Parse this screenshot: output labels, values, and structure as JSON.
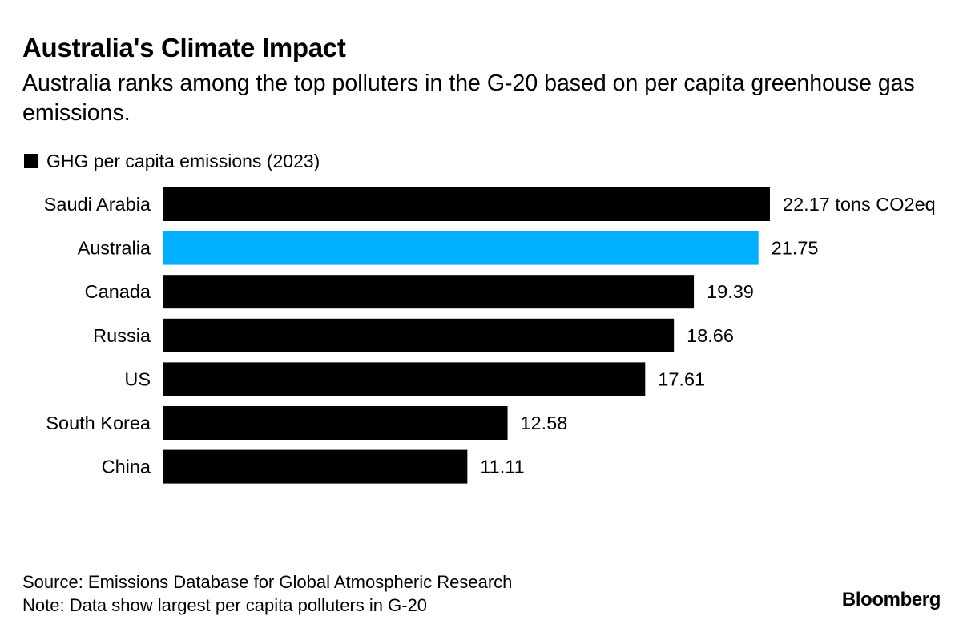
{
  "header": {
    "title": "Australia's Climate Impact",
    "subtitle": "Australia ranks among the top polluters in the G-20 based on per capita greenhouse gas emissions."
  },
  "legend": {
    "label": "GHG per capita emissions (2023)",
    "color": "#000000"
  },
  "chart_data": {
    "type": "bar",
    "orientation": "horizontal",
    "title": "Australia's Climate Impact",
    "subtitle": "Australia ranks among the top polluters in the G-20 based on per capita greenhouse gas emissions.",
    "categories": [
      "Saudi Arabia",
      "Australia",
      "Canada",
      "Russia",
      "US",
      "South Korea",
      "China"
    ],
    "series": [
      {
        "name": "GHG per capita emissions (2023)",
        "values": [
          22.17,
          21.75,
          19.39,
          18.66,
          17.61,
          12.58,
          11.11
        ]
      }
    ],
    "value_labels": [
      "22.17 tons CO2eq",
      "21.75",
      "19.39",
      "18.66",
      "17.61",
      "12.58",
      "11.11"
    ],
    "bar_colors": [
      "#000000",
      "#00b0ff",
      "#000000",
      "#000000",
      "#000000",
      "#000000",
      "#000000"
    ],
    "highlight_category": "Australia",
    "xlim": [
      0,
      22.17
    ],
    "grid": false,
    "legend_position": "top-left"
  },
  "footer": {
    "source": "Source: Emissions Database for Global Atmospheric Research",
    "note": "Note: Data show largest per capita polluters in G-20",
    "brand": "Bloomberg"
  }
}
